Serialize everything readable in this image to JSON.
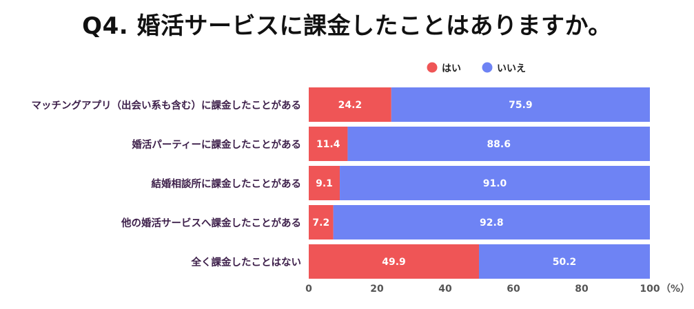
{
  "title": "Q4. 婚活サービスに課金したことはありますか。",
  "colors": {
    "yes": "#ef5556",
    "no": "#6e83f4",
    "label_text": "#3d1f4a",
    "axis": "#555555",
    "bar_text": "#ffffff"
  },
  "chart_data": {
    "type": "bar",
    "orientation": "horizontal",
    "stacked": true,
    "categories": [
      "マッチングアプリ（出会い系も含む）に課金したことがある",
      "婚活パーティーに課金したことがある",
      "結婚相談所に課金したことがある",
      "他の婚活サービスへ課金したことがある",
      "全く課金したことはない"
    ],
    "series": [
      {
        "name": "はい",
        "values": [
          24.2,
          11.4,
          9.1,
          7.2,
          49.9
        ],
        "labels": [
          "24.2",
          "11.4",
          "9.1",
          "7.2",
          "49.9"
        ]
      },
      {
        "name": "いいえ",
        "values": [
          75.9,
          88.6,
          91.0,
          92.8,
          50.2
        ],
        "labels": [
          "75.9",
          "88.6",
          "91.0",
          "92.8",
          "50.2"
        ]
      }
    ],
    "xlim": [
      0,
      100
    ],
    "xticks": [
      "0",
      "20",
      "40",
      "60",
      "80",
      "100"
    ],
    "xunit": "（%）",
    "legend_position": "top",
    "grid": false
  }
}
